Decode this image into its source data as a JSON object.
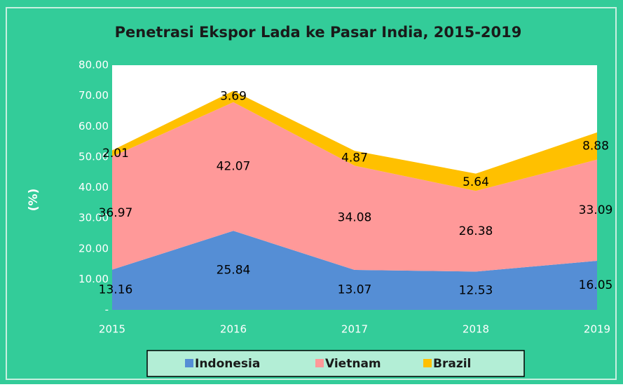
{
  "chart_data": {
    "type": "stacked_area",
    "title": "Penetrasi  Ekspor Lada ke Pasar India, 2015-2019",
    "y_label": "(%)",
    "categories": [
      "2015",
      "2016",
      "2017",
      "2018",
      "2019"
    ],
    "series": [
      {
        "name": "Indonesia",
        "color": "#558ed5",
        "values": [
          13.16,
          25.84,
          13.07,
          12.53,
          16.05
        ]
      },
      {
        "name": "Vietnam",
        "color": "#ff9999",
        "values": [
          36.97,
          42.07,
          34.08,
          26.38,
          33.09
        ]
      },
      {
        "name": "Brazil",
        "color": "#ffc000",
        "values": [
          2.01,
          3.69,
          4.87,
          5.64,
          8.88
        ]
      }
    ],
    "ylim": [
      0,
      80
    ],
    "yticks": [
      {
        "value": 0,
        "label": "-"
      },
      {
        "value": 10,
        "label": "10.00"
      },
      {
        "value": 20,
        "label": "20.00"
      },
      {
        "value": 30,
        "label": "30.00"
      },
      {
        "value": 40,
        "label": "40.00"
      },
      {
        "value": 50,
        "label": "50.00"
      },
      {
        "value": 60,
        "label": "60.00"
      },
      {
        "value": 70,
        "label": "70.00"
      },
      {
        "value": 80,
        "label": "80.00"
      }
    ],
    "legend": "bottom"
  }
}
